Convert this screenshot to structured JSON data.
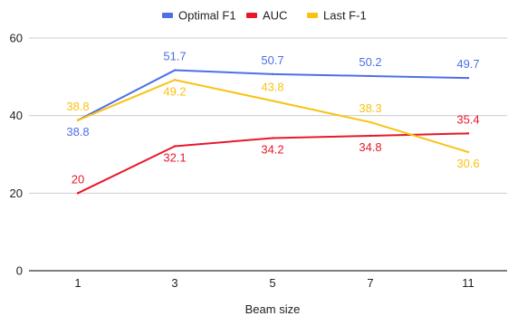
{
  "chart_data": {
    "type": "line",
    "title": "",
    "xlabel": "Beam size",
    "ylabel": "",
    "categories": [
      "1",
      "3",
      "5",
      "7",
      "11"
    ],
    "ylim": [
      0,
      60
    ],
    "yticks": [
      0,
      20,
      40,
      60
    ],
    "grid": true,
    "legend_position": "top",
    "series": [
      {
        "name": "Optimal F1",
        "color": "#4f6fe8",
        "values": [
          38.8,
          51.7,
          50.7,
          50.2,
          49.7
        ],
        "labels": [
          "38.8",
          "51.7",
          "50.7",
          "50.2",
          "49.7"
        ],
        "label_position": [
          "below",
          "above",
          "above",
          "above",
          "above"
        ]
      },
      {
        "name": "AUC",
        "color": "#e8182b",
        "values": [
          20,
          32.1,
          34.2,
          34.8,
          35.4
        ],
        "labels": [
          "20",
          "32.1",
          "34.2",
          "34.8",
          "35.4"
        ],
        "label_position": [
          "above",
          "below",
          "below",
          "below",
          "above"
        ]
      },
      {
        "name": "Last F-1",
        "color": "#f9c213",
        "values": [
          38.8,
          49.2,
          43.8,
          38.3,
          30.6
        ],
        "labels": [
          "38.8",
          "49.2",
          "43.8",
          "38.3",
          "30.6"
        ],
        "label_position": [
          "above",
          "below",
          "above",
          "above",
          "below"
        ]
      }
    ]
  }
}
